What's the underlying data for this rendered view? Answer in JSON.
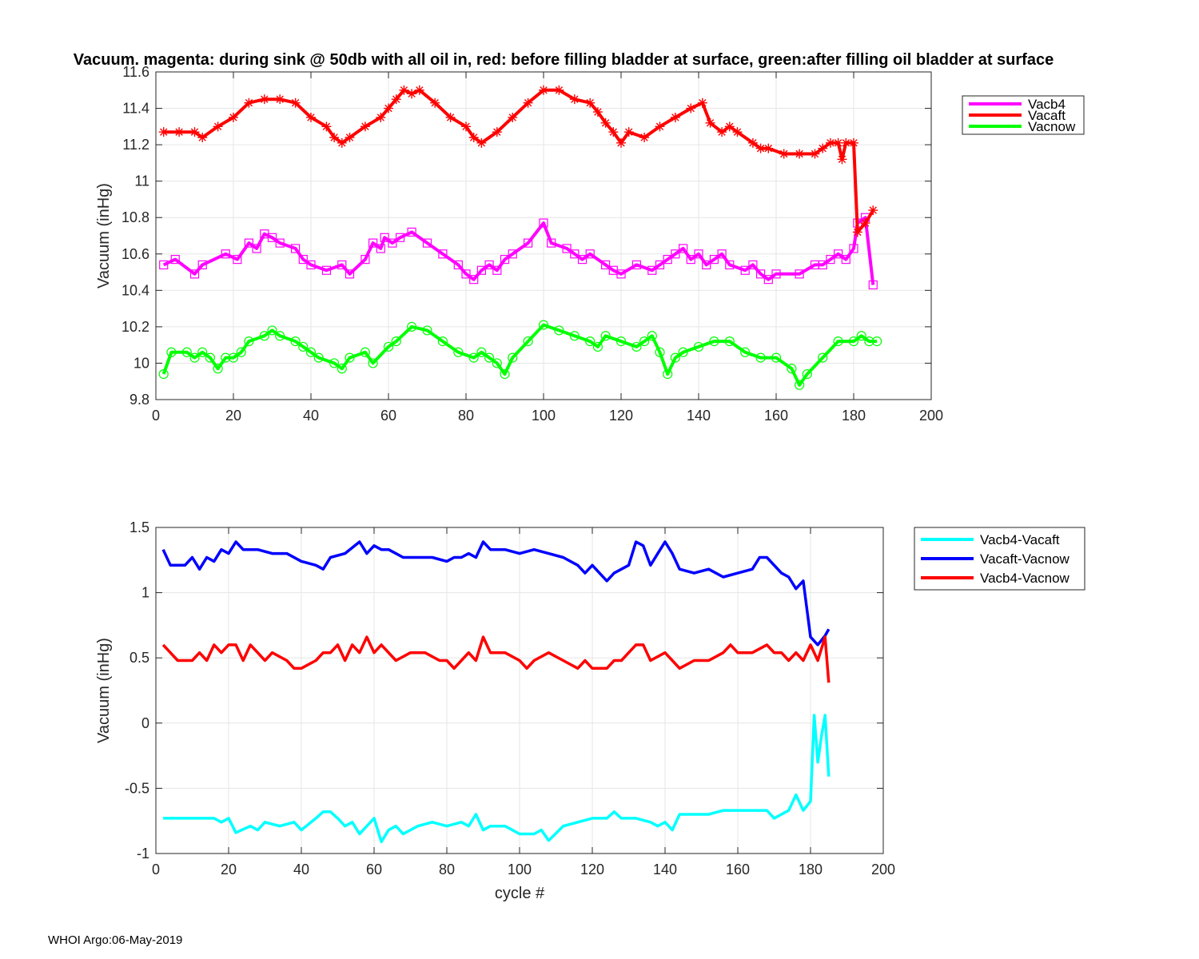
{
  "figure": {
    "title": "Vacuum. magenta: during sink @ 50db with all oil in, red: before filling bladder at surface, green:after filling oil bladder at surface",
    "footer": "WHOI Argo:06-May-2019"
  },
  "chart_data": [
    {
      "type": "line",
      "panel": "top",
      "title": "Vacuum. magenta: during sink @ 50db with all oil in, red: before filling bladder at surface, green:after filling oil bladder at surface",
      "xlabel": "",
      "ylabel": "Vacuum (inHg)",
      "xlim": [
        0,
        200
      ],
      "ylim": [
        9.8,
        11.6
      ],
      "xticks": [
        0,
        20,
        40,
        60,
        80,
        100,
        120,
        140,
        160,
        180,
        200
      ],
      "yticks": [
        9.8,
        10,
        10.2,
        10.4,
        10.6,
        10.8,
        11,
        11.2,
        11.4,
        11.6
      ],
      "xtick_labels": [
        "0",
        "20",
        "40",
        "60",
        "80",
        "100",
        "120",
        "140",
        "160",
        "180",
        "200"
      ],
      "ytick_labels": [
        "9.8",
        "10",
        "10.2",
        "10.4",
        "10.6",
        "10.8",
        "11",
        "11.2",
        "11.4",
        "11.6"
      ],
      "grid": true,
      "legend_position": "outside-top-right",
      "series": [
        {
          "name": "Vacb4",
          "color": "#ff00ff",
          "marker": "square",
          "x": [
            2,
            5,
            10,
            12,
            18,
            21,
            24,
            26,
            28,
            30,
            32,
            36,
            38,
            40,
            44,
            48,
            50,
            54,
            56,
            58,
            59,
            61,
            63,
            66,
            70,
            74,
            78,
            80,
            82,
            84,
            86,
            88,
            90,
            92,
            96,
            100,
            102,
            106,
            108,
            110,
            112,
            116,
            118,
            120,
            124,
            128,
            130,
            132,
            134,
            136,
            138,
            140,
            142,
            144,
            146,
            148,
            152,
            154,
            156,
            158,
            160,
            166,
            170,
            172,
            174,
            176,
            178,
            180,
            181,
            183,
            185
          ],
          "y": [
            10.54,
            10.57,
            10.49,
            10.54,
            10.6,
            10.57,
            10.66,
            10.63,
            10.71,
            10.69,
            10.66,
            10.63,
            10.57,
            10.54,
            10.51,
            10.54,
            10.49,
            10.57,
            10.66,
            10.63,
            10.69,
            10.66,
            10.69,
            10.72,
            10.66,
            10.6,
            10.54,
            10.49,
            10.46,
            10.51,
            10.54,
            10.51,
            10.57,
            10.6,
            10.66,
            10.77,
            10.66,
            10.63,
            10.6,
            10.57,
            10.6,
            10.54,
            10.51,
            10.49,
            10.54,
            10.51,
            10.54,
            10.57,
            10.6,
            10.63,
            10.57,
            10.6,
            10.54,
            10.57,
            10.6,
            10.54,
            10.51,
            10.54,
            10.49,
            10.46,
            10.49,
            10.49,
            10.54,
            10.54,
            10.57,
            10.6,
            10.57,
            10.63,
            10.77,
            10.8,
            10.43
          ]
        },
        {
          "name": "Vacaft",
          "color": "#ff0000",
          "marker": "star",
          "x": [
            2,
            6,
            10,
            12,
            16,
            20,
            24,
            28,
            32,
            36,
            40,
            44,
            46,
            48,
            50,
            54,
            58,
            60,
            62,
            64,
            66,
            68,
            72,
            76,
            80,
            82,
            84,
            88,
            92,
            96,
            100,
            104,
            108,
            112,
            114,
            116,
            118,
            120,
            122,
            126,
            130,
            134,
            138,
            141,
            143,
            146,
            148,
            150,
            154,
            156,
            158,
            162,
            166,
            170,
            172,
            174,
            176,
            177,
            178,
            180,
            181,
            183,
            185
          ],
          "y": [
            11.27,
            11.27,
            11.27,
            11.24,
            11.3,
            11.35,
            11.43,
            11.45,
            11.45,
            11.43,
            11.35,
            11.3,
            11.24,
            11.21,
            11.24,
            11.3,
            11.35,
            11.4,
            11.45,
            11.5,
            11.48,
            11.5,
            11.43,
            11.35,
            11.3,
            11.24,
            11.21,
            11.27,
            11.35,
            11.43,
            11.5,
            11.5,
            11.45,
            11.43,
            11.38,
            11.32,
            11.27,
            11.21,
            11.27,
            11.24,
            11.3,
            11.35,
            11.4,
            11.43,
            11.32,
            11.27,
            11.3,
            11.27,
            11.21,
            11.18,
            11.18,
            11.15,
            11.15,
            11.15,
            11.18,
            11.21,
            11.21,
            11.12,
            11.21,
            11.21,
            10.72,
            10.77,
            10.84
          ]
        },
        {
          "name": "Vacnow",
          "color": "#00ff00",
          "marker": "circle",
          "x": [
            2,
            4,
            8,
            10,
            12,
            14,
            16,
            18,
            20,
            22,
            24,
            28,
            30,
            32,
            36,
            38,
            40,
            42,
            46,
            48,
            50,
            54,
            56,
            60,
            62,
            66,
            70,
            74,
            78,
            82,
            84,
            86,
            88,
            90,
            92,
            96,
            100,
            104,
            108,
            112,
            114,
            116,
            120,
            124,
            126,
            128,
            130,
            132,
            134,
            136,
            140,
            144,
            148,
            152,
            156,
            160,
            164,
            166,
            168,
            172,
            176,
            180,
            182,
            184,
            186
          ],
          "y": [
            9.94,
            10.06,
            10.06,
            10.03,
            10.06,
            10.03,
            9.97,
            10.03,
            10.03,
            10.06,
            10.12,
            10.15,
            10.18,
            10.15,
            10.12,
            10.09,
            10.06,
            10.03,
            10.0,
            9.97,
            10.03,
            10.06,
            10.0,
            10.09,
            10.12,
            10.2,
            10.18,
            10.12,
            10.06,
            10.03,
            10.06,
            10.03,
            10.0,
            9.94,
            10.03,
            10.12,
            10.21,
            10.18,
            10.15,
            10.12,
            10.09,
            10.15,
            10.12,
            10.09,
            10.12,
            10.15,
            10.06,
            9.94,
            10.03,
            10.06,
            10.09,
            10.12,
            10.12,
            10.06,
            10.03,
            10.03,
            9.97,
            9.88,
            9.94,
            10.03,
            10.12,
            10.12,
            10.15,
            10.12,
            10.12
          ]
        }
      ]
    },
    {
      "type": "line",
      "panel": "bottom",
      "title": "",
      "xlabel": "cycle #",
      "ylabel": "Vacuum (inHg)",
      "xlim": [
        0,
        200
      ],
      "ylim": [
        -1,
        1.5
      ],
      "xticks": [
        0,
        20,
        40,
        60,
        80,
        100,
        120,
        140,
        160,
        180,
        200
      ],
      "yticks": [
        -1,
        -0.5,
        0,
        0.5,
        1,
        1.5
      ],
      "xtick_labels": [
        "0",
        "20",
        "40",
        "60",
        "80",
        "100",
        "120",
        "140",
        "160",
        "180",
        "200"
      ],
      "ytick_labels": [
        "-1",
        "-0.5",
        "0",
        "0.5",
        "1",
        "1.5"
      ],
      "grid": true,
      "legend_position": "outside-top-right",
      "series": [
        {
          "name": "Vacb4-Vacaft",
          "color": "#00ffff",
          "x": [
            2,
            4,
            6,
            10,
            16,
            18,
            20,
            22,
            26,
            28,
            30,
            34,
            38,
            40,
            44,
            46,
            48,
            50,
            52,
            54,
            56,
            58,
            60,
            62,
            64,
            66,
            68,
            72,
            76,
            80,
            84,
            86,
            88,
            90,
            92,
            96,
            100,
            104,
            106,
            108,
            112,
            116,
            120,
            124,
            126,
            128,
            132,
            136,
            138,
            140,
            142,
            144,
            148,
            152,
            156,
            160,
            164,
            168,
            170,
            174,
            176,
            178,
            180,
            181,
            182,
            183,
            184,
            185
          ],
          "y": [
            -0.73,
            -0.73,
            -0.73,
            -0.73,
            -0.73,
            -0.76,
            -0.73,
            -0.84,
            -0.79,
            -0.82,
            -0.76,
            -0.79,
            -0.76,
            -0.82,
            -0.73,
            -0.68,
            -0.68,
            -0.73,
            -0.79,
            -0.76,
            -0.85,
            -0.79,
            -0.73,
            -0.91,
            -0.82,
            -0.79,
            -0.85,
            -0.79,
            -0.76,
            -0.79,
            -0.76,
            -0.79,
            -0.7,
            -0.82,
            -0.79,
            -0.79,
            -0.85,
            -0.85,
            -0.82,
            -0.9,
            -0.79,
            -0.76,
            -0.73,
            -0.73,
            -0.68,
            -0.73,
            -0.73,
            -0.76,
            -0.79,
            -0.76,
            -0.82,
            -0.7,
            -0.7,
            -0.7,
            -0.67,
            -0.67,
            -0.67,
            -0.67,
            -0.73,
            -0.67,
            -0.55,
            -0.67,
            -0.6,
            0.06,
            -0.3,
            -0.1,
            0.06,
            -0.41
          ]
        },
        {
          "name": "Vacaft-Vacnow",
          "color": "#0000ff",
          "x": [
            2,
            4,
            8,
            10,
            12,
            14,
            16,
            18,
            20,
            22,
            24,
            28,
            32,
            36,
            40,
            44,
            46,
            48,
            52,
            56,
            58,
            60,
            62,
            64,
            66,
            68,
            72,
            76,
            80,
            82,
            84,
            86,
            88,
            90,
            92,
            96,
            100,
            104,
            108,
            112,
            116,
            118,
            120,
            124,
            126,
            128,
            130,
            132,
            134,
            136,
            138,
            140,
            142,
            144,
            148,
            152,
            156,
            160,
            164,
            166,
            168,
            172,
            174,
            176,
            178,
            180,
            182,
            184,
            185
          ],
          "y": [
            1.33,
            1.21,
            1.21,
            1.27,
            1.18,
            1.27,
            1.24,
            1.33,
            1.3,
            1.39,
            1.33,
            1.33,
            1.3,
            1.3,
            1.24,
            1.21,
            1.18,
            1.27,
            1.3,
            1.39,
            1.3,
            1.36,
            1.33,
            1.33,
            1.3,
            1.27,
            1.27,
            1.27,
            1.24,
            1.27,
            1.27,
            1.3,
            1.27,
            1.39,
            1.33,
            1.33,
            1.3,
            1.33,
            1.3,
            1.27,
            1.21,
            1.15,
            1.21,
            1.09,
            1.15,
            1.18,
            1.21,
            1.39,
            1.36,
            1.21,
            1.3,
            1.39,
            1.3,
            1.18,
            1.15,
            1.18,
            1.12,
            1.15,
            1.18,
            1.27,
            1.27,
            1.15,
            1.12,
            1.03,
            1.09,
            0.66,
            0.6,
            0.67,
            0.72
          ]
        },
        {
          "name": "Vacb4-Vacnow",
          "color": "#ff0000",
          "x": [
            2,
            4,
            6,
            10,
            12,
            14,
            16,
            18,
            20,
            22,
            24,
            26,
            28,
            30,
            32,
            36,
            38,
            40,
            44,
            46,
            48,
            50,
            52,
            54,
            56,
            58,
            60,
            62,
            66,
            70,
            74,
            78,
            80,
            82,
            84,
            86,
            88,
            90,
            92,
            96,
            100,
            102,
            104,
            108,
            112,
            116,
            118,
            120,
            124,
            126,
            128,
            130,
            132,
            134,
            136,
            140,
            142,
            144,
            148,
            152,
            156,
            158,
            160,
            164,
            168,
            170,
            172,
            174,
            176,
            178,
            180,
            182,
            184,
            185
          ],
          "y": [
            0.6,
            0.54,
            0.48,
            0.48,
            0.54,
            0.48,
            0.6,
            0.54,
            0.6,
            0.6,
            0.48,
            0.6,
            0.54,
            0.48,
            0.54,
            0.48,
            0.42,
            0.42,
            0.48,
            0.54,
            0.54,
            0.6,
            0.48,
            0.6,
            0.54,
            0.66,
            0.54,
            0.6,
            0.48,
            0.54,
            0.54,
            0.48,
            0.48,
            0.42,
            0.48,
            0.54,
            0.48,
            0.66,
            0.54,
            0.54,
            0.48,
            0.42,
            0.48,
            0.54,
            0.48,
            0.42,
            0.48,
            0.42,
            0.42,
            0.48,
            0.48,
            0.54,
            0.6,
            0.6,
            0.48,
            0.54,
            0.48,
            0.42,
            0.48,
            0.48,
            0.54,
            0.6,
            0.54,
            0.54,
            0.6,
            0.54,
            0.54,
            0.48,
            0.54,
            0.48,
            0.6,
            0.48,
            0.66,
            0.31
          ]
        }
      ]
    }
  ]
}
